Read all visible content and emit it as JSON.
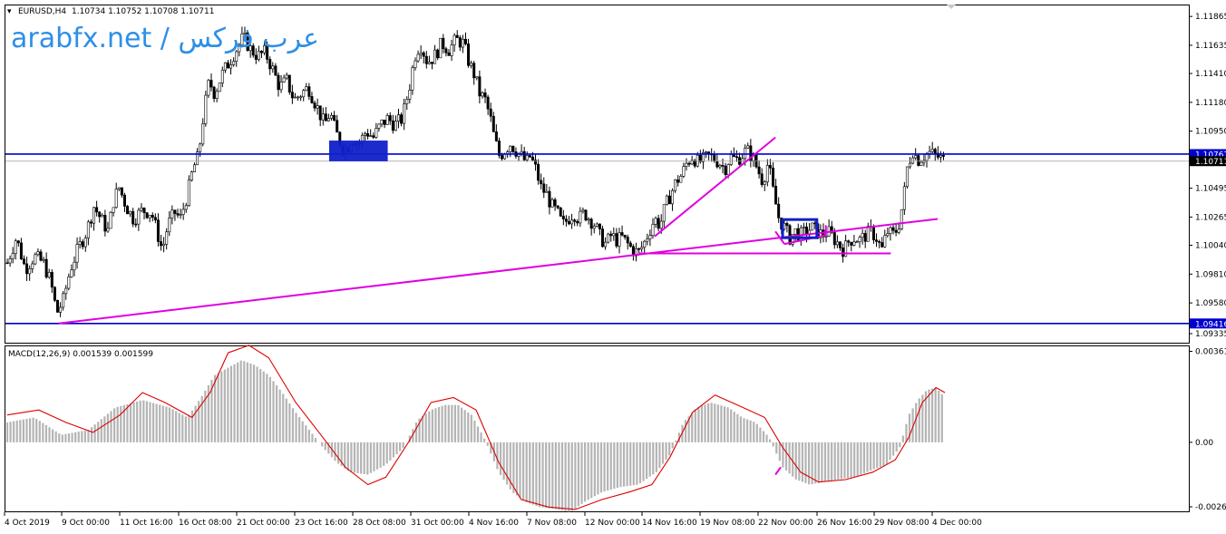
{
  "header": {
    "symbol": "EURUSD,H4",
    "ohlc": "1.10734 1.10752 1.10708 1.10711"
  },
  "watermark": "arabfx.net / عرب فركس",
  "colors": {
    "candle": "#000000",
    "trendline": "#e000e0",
    "hline": "#0000cc",
    "box": "#1020c8",
    "histogram": "#b4b4b4",
    "signal": "#dd0000"
  },
  "chart_data": [
    {
      "type": "candlestick",
      "title": "EURUSD,H4",
      "ylim": [
        1.09335,
        1.11895
      ],
      "y_ticks": [
        "1.11865",
        "1.11635",
        "1.11410",
        "1.11180",
        "1.10950",
        "1.10495",
        "1.10265",
        "1.10040",
        "1.09810",
        "1.09580",
        "1.09335"
      ],
      "current_price_label": "1.10711",
      "horizontal_lines": [
        {
          "price": 1.10767,
          "label": "1.10767"
        },
        {
          "price": 1.09416,
          "label": "1.09416"
        }
      ],
      "price_path": [
        [
          0,
          1.099
        ],
        [
          10,
          1.101
        ],
        [
          20,
          1.0985
        ],
        [
          30,
          1.0995
        ],
        [
          40,
          1.099
        ],
        [
          48,
          1.0975
        ],
        [
          55,
          1.095
        ],
        [
          62,
          1.096
        ],
        [
          70,
          1.0985
        ],
        [
          78,
          1.1
        ],
        [
          88,
          1.1015
        ],
        [
          96,
          1.1035
        ],
        [
          104,
          1.1025
        ],
        [
          112,
          1.1015
        ],
        [
          118,
          1.104
        ],
        [
          124,
          1.105
        ],
        [
          132,
          1.1035
        ],
        [
          140,
          1.1025
        ],
        [
          150,
          1.1032
        ],
        [
          160,
          1.103
        ],
        [
          168,
          1.101
        ],
        [
          172,
          1.1
        ],
        [
          178,
          1.102
        ],
        [
          186,
          1.103
        ],
        [
          192,
          1.1025
        ],
        [
          200,
          1.1045
        ],
        [
          206,
          1.1065
        ],
        [
          212,
          1.1075
        ],
        [
          218,
          1.111
        ],
        [
          224,
          1.1135
        ],
        [
          230,
          1.1125
        ],
        [
          238,
          1.114
        ],
        [
          246,
          1.115
        ],
        [
          254,
          1.116
        ],
        [
          262,
          1.117
        ],
        [
          270,
          1.116
        ],
        [
          278,
          1.1155
        ],
        [
          286,
          1.1158
        ],
        [
          294,
          1.1145
        ],
        [
          302,
          1.113
        ],
        [
          310,
          1.1135
        ],
        [
          318,
          1.112
        ],
        [
          326,
          1.1125
        ],
        [
          334,
          1.113
        ],
        [
          340,
          1.112
        ],
        [
          346,
          1.111
        ],
        [
          352,
          1.11
        ],
        [
          358,
          1.111
        ],
        [
          364,
          1.1095
        ],
        [
          370,
          1.1085
        ],
        [
          376,
          1.108
        ],
        [
          382,
          1.109
        ],
        [
          390,
          1.1085
        ],
        [
          398,
          1.1095
        ],
        [
          406,
          1.109
        ],
        [
          414,
          1.11
        ],
        [
          422,
          1.1105
        ],
        [
          430,
          1.11
        ],
        [
          438,
          1.1105
        ],
        [
          446,
          1.113
        ],
        [
          452,
          1.1155
        ],
        [
          458,
          1.1165
        ],
        [
          466,
          1.115
        ],
        [
          474,
          1.1155
        ],
        [
          482,
          1.1165
        ],
        [
          490,
          1.116
        ],
        [
          498,
          1.1168
        ],
        [
          506,
          1.1165
        ],
        [
          512,
          1.115
        ],
        [
          518,
          1.114
        ],
        [
          524,
          1.1125
        ],
        [
          530,
          1.112
        ],
        [
          536,
          1.1105
        ],
        [
          540,
          1.109
        ],
        [
          546,
          1.1075
        ],
        [
          552,
          1.108
        ],
        [
          558,
          1.1085
        ],
        [
          564,
          1.108
        ],
        [
          570,
          1.1075
        ],
        [
          576,
          1.107
        ],
        [
          580,
          1.1075
        ],
        [
          586,
          1.1065
        ],
        [
          592,
          1.105
        ],
        [
          598,
          1.1045
        ],
        [
          604,
          1.1035
        ],
        [
          610,
          1.103
        ],
        [
          616,
          1.102
        ],
        [
          622,
          1.1025
        ],
        [
          628,
          1.103
        ],
        [
          634,
          1.1025
        ],
        [
          640,
          1.103
        ],
        [
          646,
          1.1025
        ],
        [
          652,
          1.102
        ],
        [
          658,
          1.101
        ],
        [
          664,
          1.1005
        ],
        [
          670,
          1.1012
        ],
        [
          676,
          1.1008
        ],
        [
          682,
          1.101
        ],
        [
          688,
          1.1005
        ],
        [
          694,
          1.1
        ],
        [
          700,
          1.0998
        ],
        [
          706,
          1.1005
        ],
        [
          712,
          1.1015
        ],
        [
          718,
          1.1025
        ],
        [
          724,
          1.102
        ],
        [
          730,
          1.1035
        ],
        [
          736,
          1.1045
        ],
        [
          742,
          1.1055
        ],
        [
          748,
          1.106
        ],
        [
          754,
          1.107
        ],
        [
          760,
          1.1075
        ],
        [
          766,
          1.107
        ],
        [
          772,
          1.1072
        ],
        [
          778,
          1.1075
        ],
        [
          784,
          1.1073
        ],
        [
          790,
          1.107
        ],
        [
          796,
          1.1065
        ],
        [
          802,
          1.1075
        ],
        [
          808,
          1.1072
        ],
        [
          814,
          1.1075
        ],
        [
          820,
          1.108
        ],
        [
          826,
          1.1075
        ],
        [
          832,
          1.1065
        ],
        [
          838,
          1.1055
        ],
        [
          844,
          1.107
        ],
        [
          850,
          1.1045
        ],
        [
          856,
          1.1025
        ],
        [
          862,
          1.1018
        ],
        [
          868,
          1.101
        ],
        [
          874,
          1.1015
        ],
        [
          880,
          1.1012
        ],
        [
          886,
          1.1015
        ],
        [
          892,
          1.1018
        ],
        [
          898,
          1.1015
        ],
        [
          904,
          1.1012
        ],
        [
          910,
          1.1015
        ],
        [
          916,
          1.101
        ],
        [
          922,
          1.1005
        ],
        [
          928,
          1.1
        ],
        [
          934,
          1.1008
        ],
        [
          940,
          1.101
        ],
        [
          946,
          1.1008
        ],
        [
          952,
          1.1012
        ],
        [
          958,
          1.1015
        ],
        [
          964,
          1.101
        ],
        [
          970,
          1.1
        ],
        [
          976,
          1.1015
        ],
        [
          982,
          1.1012
        ],
        [
          988,
          1.1018
        ],
        [
          994,
          1.104
        ],
        [
          998,
          1.1065
        ],
        [
          1004,
          1.108
        ],
        [
          1010,
          1.1072
        ],
        [
          1016,
          1.1075
        ],
        [
          1022,
          1.1078
        ],
        [
          1028,
          1.1076
        ],
        [
          1034,
          1.1074
        ],
        [
          1040,
          1.1071
        ]
      ]
    },
    {
      "type": "macd",
      "title": "MACD(12,26,9) 0.001539 0.001599",
      "ylim": [
        -0.00263,
        0.00364
      ],
      "y_ticks": [
        "0.003614",
        "0.00",
        "-0.00263"
      ],
      "histogram_path": [
        [
          0,
          0.0008
        ],
        [
          30,
          0.001
        ],
        [
          60,
          0.0003
        ],
        [
          90,
          0.0005
        ],
        [
          120,
          0.0014
        ],
        [
          150,
          0.0017
        ],
        [
          180,
          0.0014
        ],
        [
          200,
          0.001
        ],
        [
          215,
          0.0018
        ],
        [
          230,
          0.0027
        ],
        [
          245,
          0.003
        ],
        [
          260,
          0.0033
        ],
        [
          275,
          0.0031
        ],
        [
          290,
          0.0027
        ],
        [
          305,
          0.002
        ],
        [
          320,
          0.0012
        ],
        [
          335,
          0.0005
        ],
        [
          350,
          -0.0002
        ],
        [
          365,
          -0.0008
        ],
        [
          380,
          -0.0012
        ],
        [
          400,
          -0.0013
        ],
        [
          420,
          -0.0009
        ],
        [
          440,
          -0.0002
        ],
        [
          455,
          0.0009
        ],
        [
          470,
          0.0013
        ],
        [
          485,
          0.0015
        ],
        [
          500,
          0.0015
        ],
        [
          515,
          0.0011
        ],
        [
          530,
          0.0001
        ],
        [
          545,
          -0.0012
        ],
        [
          560,
          -0.002
        ],
        [
          575,
          -0.0024
        ],
        [
          590,
          -0.0026
        ],
        [
          610,
          -0.0027
        ],
        [
          625,
          -0.0028
        ],
        [
          640,
          -0.0024
        ],
        [
          660,
          -0.002
        ],
        [
          680,
          -0.0018
        ],
        [
          700,
          -0.0017
        ],
        [
          720,
          -0.0012
        ],
        [
          735,
          -0.0005
        ],
        [
          750,
          0.0008
        ],
        [
          765,
          0.0014
        ],
        [
          780,
          0.0016
        ],
        [
          800,
          0.0014
        ],
        [
          815,
          0.001
        ],
        [
          830,
          0.0008
        ],
        [
          845,
          0.0002
        ],
        [
          860,
          -0.001
        ],
        [
          875,
          -0.0015
        ],
        [
          890,
          -0.0017
        ],
        [
          905,
          -0.0016
        ],
        [
          920,
          -0.0015
        ],
        [
          940,
          -0.0014
        ],
        [
          960,
          -0.0011
        ],
        [
          975,
          -0.0009
        ],
        [
          990,
          -0.0002
        ],
        [
          1000,
          0.0011
        ],
        [
          1010,
          0.0017
        ],
        [
          1020,
          0.0021
        ],
        [
          1030,
          0.0022
        ],
        [
          1040,
          0.0018
        ]
      ],
      "signal_path": [
        [
          0,
          0.0011
        ],
        [
          35,
          0.0013
        ],
        [
          65,
          0.0008
        ],
        [
          95,
          0.0004
        ],
        [
          125,
          0.0011
        ],
        [
          150,
          0.002
        ],
        [
          175,
          0.0016
        ],
        [
          205,
          0.001
        ],
        [
          225,
          0.002
        ],
        [
          245,
          0.0036
        ],
        [
          268,
          0.0039
        ],
        [
          290,
          0.0034
        ],
        [
          320,
          0.0016
        ],
        [
          350,
          0.0002
        ],
        [
          375,
          -0.001
        ],
        [
          400,
          -0.0017
        ],
        [
          420,
          -0.0014
        ],
        [
          445,
          0.0
        ],
        [
          470,
          0.0016
        ],
        [
          495,
          0.0018
        ],
        [
          520,
          0.0013
        ],
        [
          545,
          -0.0008
        ],
        [
          570,
          -0.0023
        ],
        [
          600,
          -0.0026
        ],
        [
          630,
          -0.0027
        ],
        [
          660,
          -0.0023
        ],
        [
          690,
          -0.002
        ],
        [
          715,
          -0.0017
        ],
        [
          735,
          -0.0006
        ],
        [
          760,
          0.0012
        ],
        [
          785,
          0.0019
        ],
        [
          810,
          0.0015
        ],
        [
          840,
          0.001
        ],
        [
          860,
          -0.0002
        ],
        [
          880,
          -0.0012
        ],
        [
          900,
          -0.0016
        ],
        [
          930,
          -0.0015
        ],
        [
          960,
          -0.0012
        ],
        [
          985,
          -0.0007
        ],
        [
          1000,
          0.0002
        ],
        [
          1015,
          0.0016
        ],
        [
          1030,
          0.0022
        ],
        [
          1040,
          0.002
        ]
      ]
    }
  ],
  "x_axis": {
    "labels": [
      "4 Oct 2019",
      "9 Oct 00:00",
      "11 Oct 16:00",
      "16 Oct 08:00",
      "21 Oct 00:00",
      "23 Oct 16:00",
      "28 Oct 08:00",
      "31 Oct 00:00",
      "4 Nov 16:00",
      "7 Nov 08:00",
      "12 Nov 00:00",
      "14 Nov 16:00",
      "19 Nov 08:00",
      "22 Nov 00:00",
      "26 Nov 16:00",
      "29 Nov 08:00",
      "4 Dec 00:00"
    ]
  }
}
